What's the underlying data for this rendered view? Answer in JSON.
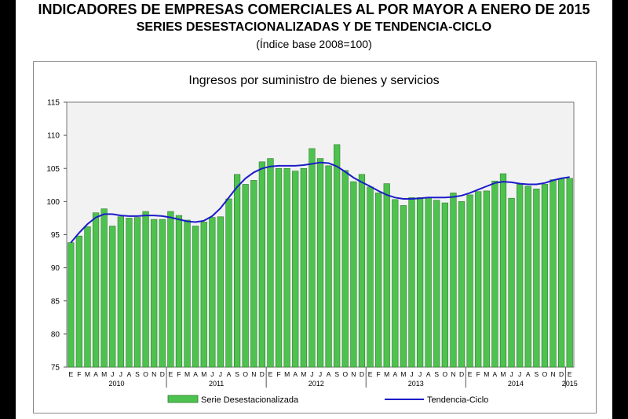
{
  "header": {
    "title": "INDICADORES DE EMPRESAS COMERCIALES AL POR MAYOR A ENERO DE 2015",
    "subtitle": "SERIES DESESTACIONALIZADAS Y DE TENDENCIA-CICLO",
    "note": "(Índice base 2008=100)"
  },
  "chart_data": {
    "type": "bar",
    "title": "Ingresos por suministro de bienes y servicios",
    "xlabel": "",
    "ylabel": "",
    "ylim": [
      75,
      115
    ],
    "yticks": [
      "75",
      "80",
      "85",
      "90",
      "95",
      "100",
      "105",
      "110",
      "115"
    ],
    "categories": [
      "E",
      "F",
      "M",
      "A",
      "M",
      "J",
      "J",
      "A",
      "S",
      "O",
      "N",
      "D",
      "E",
      "F",
      "M",
      "A",
      "M",
      "J",
      "J",
      "A",
      "S",
      "O",
      "N",
      "D",
      "E",
      "F",
      "M",
      "A",
      "M",
      "J",
      "J",
      "A",
      "S",
      "O",
      "N",
      "D",
      "E",
      "F",
      "M",
      "A",
      "M",
      "J",
      "J",
      "A",
      "S",
      "O",
      "N",
      "D",
      "E",
      "F",
      "M",
      "A",
      "M",
      "J",
      "J",
      "A",
      "S",
      "O",
      "N",
      "D",
      "E"
    ],
    "years": [
      {
        "label": "2010",
        "start": 0,
        "end": 11
      },
      {
        "label": "2011",
        "start": 12,
        "end": 23
      },
      {
        "label": "2012",
        "start": 24,
        "end": 35
      },
      {
        "label": "2013",
        "start": 36,
        "end": 47
      },
      {
        "label": "2014",
        "start": 48,
        "end": 59
      },
      {
        "label": "2015",
        "start": 60,
        "end": 60
      }
    ],
    "series": [
      {
        "name": "Serie Desestacionalizada",
        "type": "bar",
        "color": "#4ec24e",
        "values": [
          93.8,
          94.8,
          96.2,
          98.3,
          98.9,
          96.3,
          97.7,
          97.5,
          97.6,
          98.5,
          97.3,
          97.3,
          98.5,
          97.9,
          97.2,
          96.3,
          96.9,
          97.6,
          97.7,
          100.4,
          104.1,
          102.6,
          103.2,
          106.0,
          106.5,
          105.0,
          105.0,
          104.6,
          105.0,
          108.0,
          106.5,
          105.4,
          108.6,
          104.7,
          103.0,
          104.1,
          102.2,
          101.3,
          102.7,
          100.3,
          99.4,
          100.6,
          100.6,
          100.6,
          100.2,
          99.8,
          101.3,
          100.0,
          101.0,
          101.5,
          101.6,
          103.1,
          104.2,
          100.5,
          102.6,
          102.3,
          101.9,
          102.6,
          103.3,
          103.5,
          103.5
        ]
      },
      {
        "name": "Tendencia-Ciclo",
        "type": "line",
        "color": "#1c1cc8",
        "values": [
          93.8,
          95.3,
          96.6,
          97.6,
          98.1,
          98.1,
          97.9,
          97.8,
          97.8,
          97.9,
          97.9,
          97.8,
          97.6,
          97.3,
          97.0,
          96.9,
          97.1,
          97.8,
          99.0,
          100.6,
          102.2,
          103.5,
          104.4,
          105.0,
          105.3,
          105.4,
          105.4,
          105.4,
          105.5,
          105.7,
          105.9,
          105.8,
          105.3,
          104.5,
          103.6,
          102.9,
          102.3,
          101.6,
          101.0,
          100.6,
          100.4,
          100.4,
          100.5,
          100.6,
          100.6,
          100.6,
          100.7,
          100.9,
          101.3,
          101.8,
          102.3,
          102.8,
          103.0,
          102.9,
          102.7,
          102.6,
          102.6,
          102.8,
          103.2,
          103.5,
          103.7
        ]
      }
    ],
    "grid": false,
    "legend": "bottom"
  },
  "colors": {
    "bar_fill": "#4ec24e",
    "bar_stroke": "#2e7d2e",
    "line": "#1c1cc8",
    "plot_bg": "#f2f2f2"
  }
}
